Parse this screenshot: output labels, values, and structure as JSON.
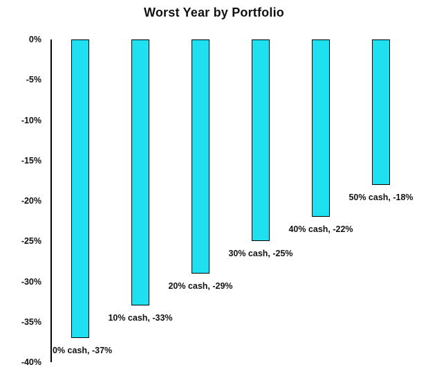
{
  "chart": {
    "title": "Worst Year by Portfolio"
  },
  "chart_data": {
    "type": "bar",
    "title": "Worst Year by Portfolio",
    "categories": [
      "0% cash",
      "10% cash",
      "20% cash",
      "30% cash",
      "40% cash",
      "50% cash"
    ],
    "values": [
      -37,
      -33,
      -29,
      -25,
      -22,
      -18
    ],
    "data_labels": [
      "0% cash, -37%",
      "10% cash, -33%",
      "20% cash, -29%",
      "30% cash, -25%",
      "40% cash, -22%",
      "50% cash, -18%"
    ],
    "xlabel": "",
    "ylabel": "",
    "ylim": [
      -40,
      0
    ],
    "yticks": [
      0,
      -5,
      -10,
      -15,
      -20,
      -25,
      -30,
      -35,
      -40
    ],
    "ytick_labels": [
      "0%",
      "-5%",
      "-10%",
      "-15%",
      "-20%",
      "-25%",
      "-30%",
      "-35%",
      "-40%"
    ],
    "grid": false,
    "legend": false,
    "bar_color": "#1FE0F0",
    "bar_border_color": "#000000",
    "axis_color": "#000000",
    "text_color": "#111111",
    "background_color": "#FFFFFF"
  }
}
